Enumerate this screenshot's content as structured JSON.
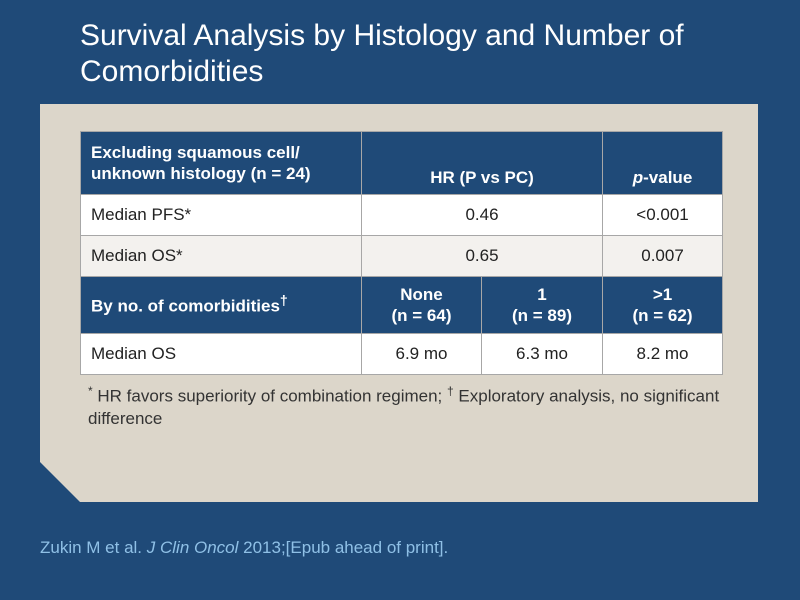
{
  "slide": {
    "title": "Survival Analysis by Histology and Number of Comorbidities"
  },
  "table": {
    "header1": {
      "label": "Excluding squamous cell/ unknown histology (n = 24)",
      "hr_label": "HR (P vs PC)",
      "pvalue_italic": "p",
      "pvalue_rest": "-value"
    },
    "rows1": [
      {
        "label": "Median PFS*",
        "hr": "0.46",
        "pvalue": "<0.001"
      },
      {
        "label": "Median OS*",
        "hr": "0.65",
        "pvalue": "0.007"
      }
    ],
    "header2": {
      "label": "By no. of comorbidities",
      "label_sup": "†",
      "col1_line1": "None",
      "col1_line2": "(n = 64)",
      "col2_line1": "1",
      "col2_line2": "(n = 89)",
      "col3_line1": ">1",
      "col3_line2": "(n = 62)"
    },
    "rows2": [
      {
        "label": "Median OS",
        "v1": "6.9 mo",
        "v2": "6.3 mo",
        "v3": "8.2 mo"
      }
    ]
  },
  "footnote": {
    "mark1": "*",
    "text1": " HR favors superiority of combination regimen; ",
    "mark2": "†",
    "text2": " Exploratory analysis, no significant difference"
  },
  "citation": {
    "authors": "Zukin M et al. ",
    "journal": "J Clin Oncol",
    "rest": " 2013;[Epub ahead of print]."
  },
  "colors": {
    "background": "#1f4a78",
    "panel": "#dcd6ca",
    "header_fill": "#1f4a78",
    "citation_text": "#8fc0e6"
  }
}
